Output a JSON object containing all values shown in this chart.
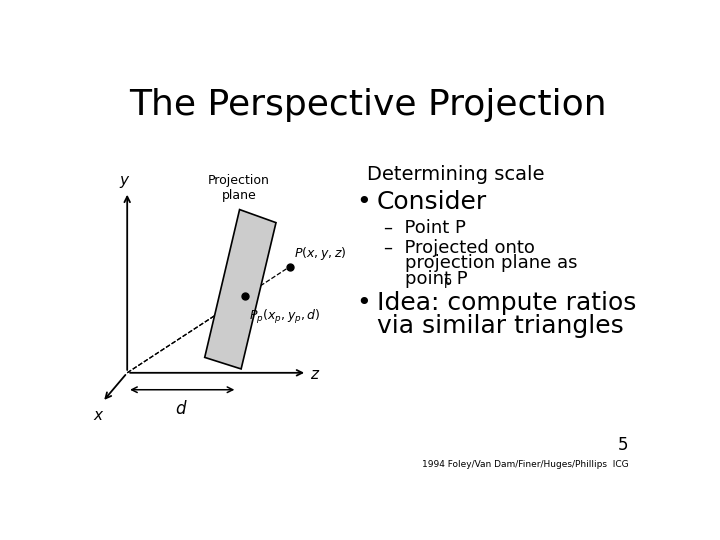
{
  "title": "The Perspective Projection",
  "bg_color": "#ffffff",
  "title_fontsize": 26,
  "subtitle": "Determining scale",
  "subtitle_fontsize": 14,
  "bullet1": "Consider",
  "bullet1_fontsize": 18,
  "sub1a": "Point P",
  "sub_fontsize": 13,
  "sub1b_line1": "Projected onto",
  "sub1b_line2": "projection plane as",
  "sub1b_line3": "point P",
  "sub1b_sub": "p",
  "bullet2_line1": "Idea: compute ratios",
  "bullet2_line2": "via similar triangles",
  "bullet2_fontsize": 18,
  "footer": "1994 Foley/Van Dam/Finer/Huges/Phillips  ICG",
  "page_num": "5",
  "plane_color": "#cccccc",
  "diagram_label_fontsize": 9,
  "axis_label_fontsize": 11
}
